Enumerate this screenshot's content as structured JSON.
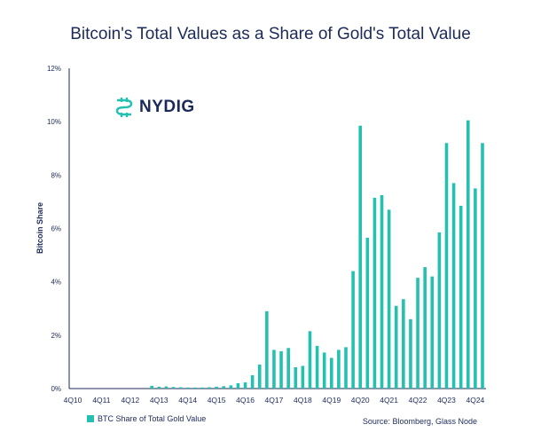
{
  "colors": {
    "bar": "#25c1b0",
    "text": "#1c2a5a",
    "axis": "#1c2a5a"
  },
  "logo": {
    "text": "NYDIG",
    "icon": "nydig-logo-icon"
  },
  "source": "Source: Bloomberg, Glass Node",
  "chart_data": {
    "type": "bar",
    "title": "Bitcoin's Total Values as a Share of Gold's Total Value",
    "ylabel": "Bitcoin Share",
    "xlabel": "",
    "ylim": [
      0,
      12
    ],
    "yticks": [
      "0%",
      "2%",
      "4%",
      "6%",
      "8%",
      "10%",
      "12%"
    ],
    "xticks": [
      "4Q10",
      "4Q11",
      "4Q12",
      "4Q13",
      "4Q14",
      "4Q15",
      "4Q16",
      "4Q17",
      "4Q18",
      "4Q19",
      "4Q20",
      "4Q21",
      "4Q22",
      "4Q23",
      "4Q24"
    ],
    "legend": "BTC Share of Total Gold Value",
    "grid": false,
    "categories": [
      "4Q10",
      "1Q11",
      "2Q11",
      "3Q11",
      "4Q11",
      "1Q12",
      "2Q12",
      "3Q12",
      "4Q12",
      "1Q13",
      "2Q13",
      "3Q13",
      "4Q13",
      "1Q14",
      "2Q14",
      "3Q14",
      "4Q14",
      "1Q15",
      "2Q15",
      "3Q15",
      "4Q15",
      "1Q16",
      "2Q16",
      "3Q16",
      "4Q16",
      "1Q17",
      "2Q17",
      "3Q17",
      "4Q17",
      "1Q18",
      "2Q18",
      "3Q18",
      "4Q18",
      "1Q19",
      "2Q19",
      "3Q19",
      "4Q19",
      "1Q20",
      "2Q20",
      "3Q20",
      "4Q20",
      "1Q21",
      "2Q21",
      "3Q21",
      "4Q21",
      "1Q22",
      "2Q22",
      "3Q22",
      "4Q22",
      "1Q23",
      "2Q23",
      "3Q23",
      "4Q23",
      "1Q24",
      "2Q24",
      "3Q24",
      "4Q24",
      "1Q25"
    ],
    "values": [
      0,
      0,
      0,
      0,
      0,
      0,
      0,
      0,
      0,
      0,
      0,
      0.1,
      0.07,
      0.08,
      0.06,
      0.05,
      0.04,
      0.04,
      0.04,
      0.05,
      0.07,
      0.09,
      0.12,
      0.2,
      0.23,
      0.5,
      0.9,
      2.9,
      1.45,
      1.4,
      1.52,
      0.8,
      0.85,
      2.15,
      1.6,
      1.35,
      1.15,
      1.45,
      1.55,
      4.4,
      9.85,
      5.65,
      7.15,
      7.25,
      6.7,
      3.1,
      3.35,
      2.6,
      4.15,
      4.55,
      4.2,
      5.85,
      9.2,
      7.7,
      6.85,
      10.05,
      7.5,
      9.2
    ]
  }
}
